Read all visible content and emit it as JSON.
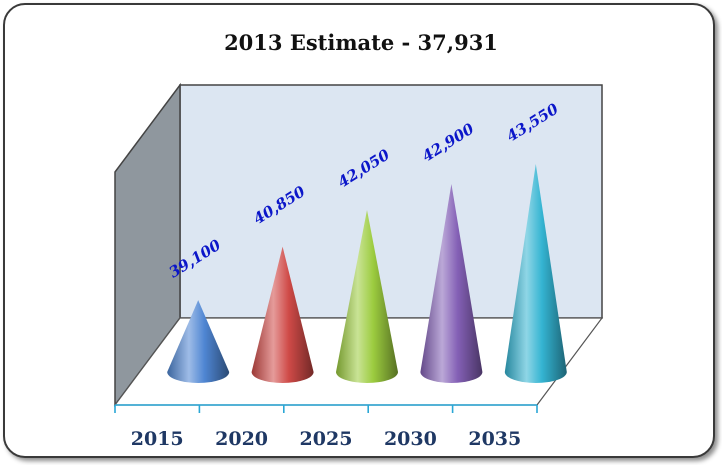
{
  "chart_data": {
    "type": "bar",
    "shape": "3d-cone",
    "title": "2013 Estimate - 37,931",
    "xlabel": "",
    "ylabel": "",
    "categories": [
      "2015",
      "2020",
      "2025",
      "2030",
      "2035"
    ],
    "values": [
      39100,
      40850,
      42050,
      42900,
      43550
    ],
    "data_labels": [
      "39,100",
      "40,850",
      "42,050",
      "42,900",
      "43,550"
    ],
    "colors": [
      "#4f86d3",
      "#cf4a47",
      "#9ccc3f",
      "#8460b6",
      "#34b4d2"
    ],
    "label_color": "#0b16c9",
    "ylim": [
      36000,
      44500
    ],
    "grid": false,
    "legend": "none"
  }
}
